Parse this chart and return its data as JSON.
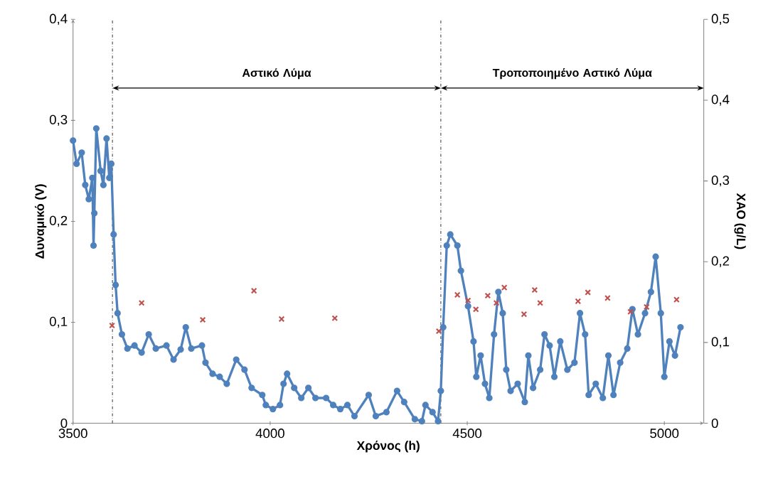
{
  "chart_data": {
    "type": "line",
    "xlabel": "Χρόνος (h)",
    "ylabel": "Δυναμικό (V)",
    "y2label": "ΧΑΟ (g/L)",
    "xlim": [
      3500,
      5100
    ],
    "xticks": [
      3500,
      4000,
      4500,
      5000
    ],
    "ylim": [
      0,
      0.4
    ],
    "yticks": [
      0,
      {
        "value": 0.1,
        "label": "0,1"
      },
      {
        "value": 0.2,
        "label": "0,2"
      },
      {
        "value": 0.3,
        "label": "0,3"
      },
      {
        "value": 0.4,
        "label": "0,4"
      }
    ],
    "y2lim": [
      0,
      0.5
    ],
    "y2ticks": [
      0,
      {
        "value": 0.1,
        "label": "0,1"
      },
      {
        "value": 0.2,
        "label": "0,2"
      },
      {
        "value": 0.3,
        "label": "0,3"
      },
      {
        "value": 0.4,
        "label": "0,4"
      },
      {
        "value": 0.5,
        "label": "0,5"
      }
    ],
    "series": [
      {
        "color": "#4f81bd",
        "marker": "circle",
        "x": [
          3500,
          3509,
          3522,
          3531,
          3540,
          3549,
          3552,
          3554,
          3559,
          3570,
          3577,
          3585,
          3592,
          3597,
          3603,
          3608,
          3613,
          3624,
          3638,
          3656,
          3674,
          3692,
          3710,
          3737,
          3755,
          3773,
          3786,
          3800,
          3827,
          3836,
          3854,
          3872,
          3890,
          3914,
          3935,
          3953,
          3980,
          3989,
          4007,
          4025,
          4034,
          4043,
          4061,
          4079,
          4097,
          4115,
          4142,
          4160,
          4178,
          4196,
          4214,
          4250,
          4268,
          4295,
          4322,
          4340,
          4367,
          4385,
          4394,
          4412,
          4426,
          4433,
          4439,
          4448,
          4457,
          4475,
          4484,
          4502,
          4516,
          4523,
          4534,
          4545,
          4556,
          4568,
          4579,
          4590,
          4599,
          4610,
          4628,
          4646,
          4655,
          4667,
          4685,
          4696,
          4709,
          4721,
          4736,
          4754,
          4772,
          4786,
          4799,
          4808,
          4826,
          4844,
          4858,
          4871,
          4888,
          4906,
          4919,
          4933,
          4951,
          4966,
          4978,
          4991,
          5000,
          5013,
          5027,
          5041
        ],
        "values": [
          0.28,
          0.257,
          0.268,
          0.236,
          0.222,
          0.243,
          0.176,
          0.208,
          0.292,
          0.25,
          0.236,
          0.282,
          0.243,
          0.257,
          0.187,
          0.137,
          0.109,
          0.088,
          0.074,
          0.077,
          0.07,
          0.088,
          0.074,
          0.077,
          0.063,
          0.073,
          0.095,
          0.074,
          0.077,
          0.06,
          0.049,
          0.046,
          0.039,
          0.063,
          0.053,
          0.035,
          0.028,
          0.018,
          0.014,
          0.018,
          0.039,
          0.049,
          0.035,
          0.025,
          0.035,
          0.025,
          0.025,
          0.018,
          0.014,
          0.018,
          0.007,
          0.028,
          0.007,
          0.011,
          0.032,
          0.021,
          0.004,
          0.002,
          0.018,
          0.011,
          0.002,
          0.032,
          0.095,
          0.176,
          0.187,
          0.176,
          0.151,
          0.116,
          0.081,
          0.046,
          0.067,
          0.039,
          0.025,
          0.088,
          0.13,
          0.109,
          0.053,
          0.032,
          0.039,
          0.021,
          0.067,
          0.035,
          0.053,
          0.088,
          0.077,
          0.046,
          0.081,
          0.053,
          0.06,
          0.109,
          0.088,
          0.028,
          0.039,
          0.025,
          0.067,
          0.028,
          0.06,
          0.074,
          0.113,
          0.088,
          0.109,
          0.13,
          0.165,
          0.109,
          0.046,
          0.081,
          0.067,
          0.095
        ]
      },
      {
        "type": "scatter",
        "axis": "y2",
        "color": "#c0504d",
        "marker": "cross",
        "x": [
          3599,
          3674,
          3829,
          3959,
          4029,
          4164,
          4428,
          4475,
          4502,
          4522,
          4552,
          4574,
          4594,
          4644,
          4671,
          4685,
          4781,
          4806,
          4856,
          4914,
          4955,
          5031
        ],
        "values": [
          0.121,
          0.149,
          0.128,
          0.164,
          0.129,
          0.13,
          0.114,
          0.159,
          0.152,
          0.141,
          0.158,
          0.149,
          0.168,
          0.135,
          0.165,
          0.149,
          0.151,
          0.162,
          0.155,
          0.138,
          0.144,
          0.153
        ]
      }
    ],
    "ref_lines": [
      {
        "axis": "x",
        "value": 3600,
        "line_style": "dashdot",
        "color": "#000000"
      },
      {
        "axis": "x",
        "value": 4433,
        "line_style": "dashdot",
        "color": "#000000"
      }
    ],
    "annotations": [
      "Αστικό Λύμα",
      "Τροποποιημένο Αστικό Λύμα"
    ]
  }
}
